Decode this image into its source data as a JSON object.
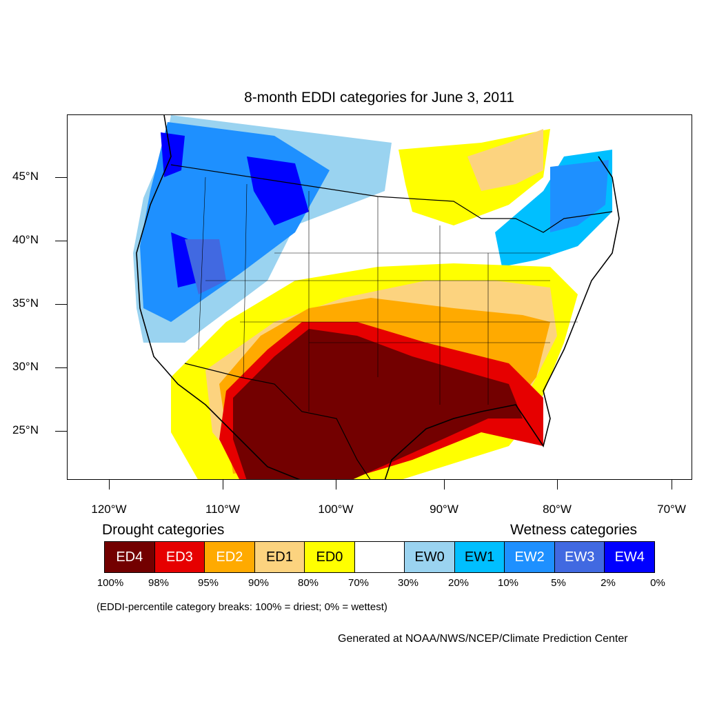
{
  "title": "8-month EDDI categories for June 3, 2011",
  "latitude_labels": [
    "45°N",
    "40°N",
    "35°N",
    "30°N",
    "25°N"
  ],
  "longitude_labels": [
    "120°W",
    "110°W",
    "100°W",
    "90°W",
    "80°W",
    "70°W"
  ],
  "legend": {
    "drought_title": "Drought categories",
    "wetness_title": "Wetness categories",
    "categories": [
      {
        "label": "ED4",
        "color": "#730000",
        "text_color": "#ffffff"
      },
      {
        "label": "ED3",
        "color": "#e60000",
        "text_color": "#ffffff"
      },
      {
        "label": "ED2",
        "color": "#ffaa00",
        "text_color": "#ffffff"
      },
      {
        "label": "ED1",
        "color": "#fcd37f",
        "text_color": "#000000"
      },
      {
        "label": "ED0",
        "color": "#ffff00",
        "text_color": "#000000"
      },
      {
        "label": "",
        "color": "#ffffff",
        "text_color": "#000000"
      },
      {
        "label": "EW0",
        "color": "#9ad3f0",
        "text_color": "#000000"
      },
      {
        "label": "EW1",
        "color": "#00bfff",
        "text_color": "#000000"
      },
      {
        "label": "EW2",
        "color": "#1e90ff",
        "text_color": "#ffffff"
      },
      {
        "label": "EW3",
        "color": "#4169e1",
        "text_color": "#ffffff"
      },
      {
        "label": "EW4",
        "color": "#0000ff",
        "text_color": "#ffffff"
      }
    ],
    "percentiles": [
      "100%",
      "98%",
      "95%",
      "90%",
      "80%",
      "70%",
      "30%",
      "20%",
      "10%",
      "5%",
      "2%",
      "0%"
    ]
  },
  "note": "(EDDI-percentile category breaks: 100% = driest; 0% = wettest)",
  "credit": "Generated at NOAA/NWS/NCEP/Climate Prediction Center"
}
